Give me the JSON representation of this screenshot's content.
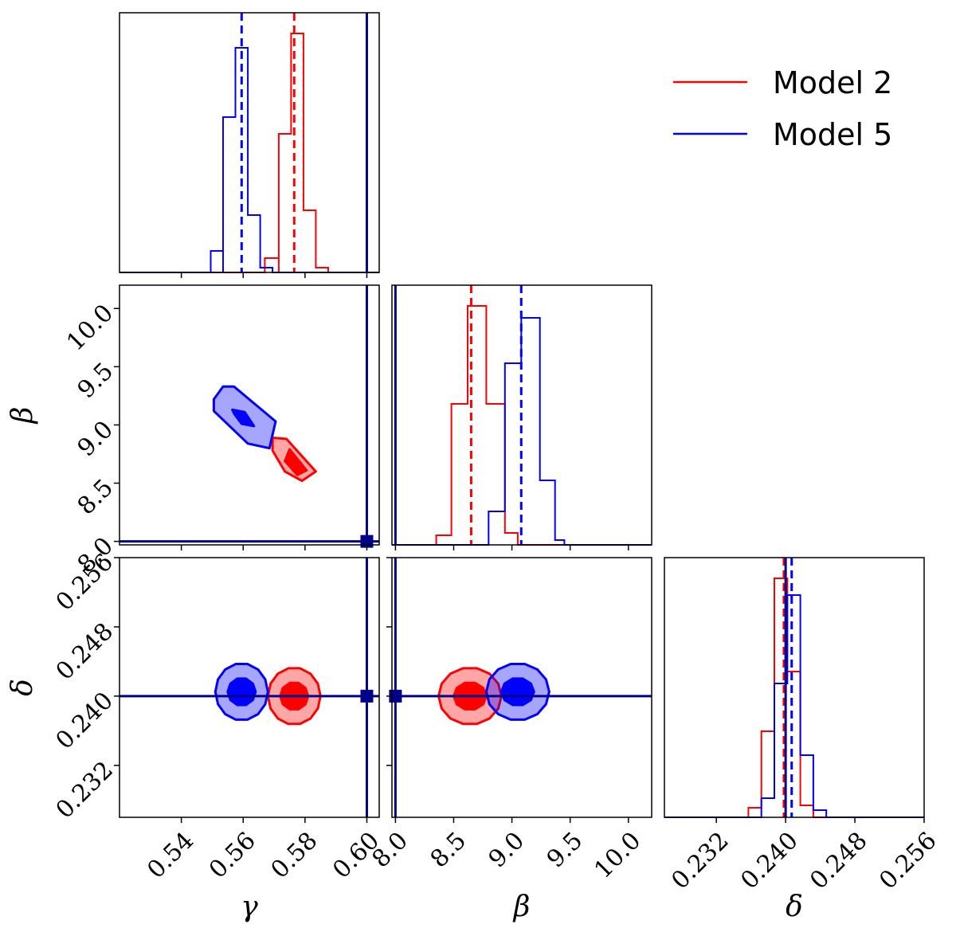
{
  "chart_data": {
    "type": "corner",
    "parameters": [
      {
        "key": "gamma",
        "label": "γ",
        "range": [
          0.52,
          0.604
        ],
        "ticks": [
          "0.54",
          "0.56",
          "0.58",
          "0.60"
        ],
        "tick_values": [
          0.54,
          0.56,
          0.58,
          0.6
        ]
      },
      {
        "key": "beta",
        "label": "β",
        "range": [
          7.97,
          10.2
        ],
        "ticks": [
          "8.0",
          "8.5",
          "9.0",
          "9.5",
          "10.0"
        ],
        "tick_values": [
          8.0,
          8.5,
          9.0,
          9.5,
          10.0
        ]
      },
      {
        "key": "delta",
        "label": "δ",
        "range": [
          0.226,
          0.256
        ],
        "ticks": [
          "0.232",
          "0.240",
          "0.248",
          "0.256"
        ],
        "tick_values": [
          0.232,
          0.24,
          0.248,
          0.256
        ]
      }
    ],
    "truth": {
      "gamma": 0.6,
      "beta": 8.0,
      "delta": 0.24
    },
    "colors": {
      "model2": "#ff0000",
      "model5": "#0000ff",
      "truth": "#00008b"
    },
    "legend": [
      {
        "name": "Model 2",
        "color": "#ff0000"
      },
      {
        "name": "Model 5",
        "color": "#0000ff"
      }
    ],
    "series": [
      {
        "name": "Model 2",
        "color": "#ff0000",
        "median": {
          "gamma": 0.5765,
          "beta": 8.65,
          "delta": 0.2398
        },
        "histograms": {
          "gamma": {
            "edges": [
              0.5715,
              0.5755,
              0.5795,
              0.5835,
              0.5875
            ],
            "counts": [
              0.58,
              1.0,
              0.26,
              0.02
            ],
            "floor_range": [
              0.52,
              0.604
            ],
            "pre": [
              [
                0.567,
                0.5715,
                0.06
              ]
            ]
          },
          "beta": {
            "edges": [
              8.35,
              8.48,
              8.62,
              8.78,
              8.94,
              9.05
            ],
            "counts": [
              0.04,
              0.59,
              1.0,
              0.59,
              0.05
            ],
            "floor_range": [
              7.97,
              10.2
            ]
          },
          "delta": {
            "edges": [
              0.2357,
              0.2372,
              0.2387,
              0.2402,
              0.2417,
              0.2432
            ],
            "counts": [
              0.04,
              0.36,
              1.0,
              0.61,
              0.05
            ],
            "floor_range": [
              0.226,
              0.256
            ]
          }
        },
        "contours": {
          "gamma_beta": {
            "center": [
              0.577,
              8.68
            ],
            "outer": [
              [
                0.5695,
                8.89
              ],
              [
                0.574,
                8.88
              ],
              [
                0.5835,
                8.6
              ],
              [
                0.579,
                8.52
              ],
              [
                0.5735,
                8.6
              ],
              [
                0.5695,
                8.78
              ]
            ],
            "inner": [
              [
                0.575,
                8.79
              ],
              [
                0.5805,
                8.61
              ],
              [
                0.5775,
                8.57
              ],
              [
                0.5735,
                8.69
              ]
            ]
          },
          "gamma_delta": {
            "center": [
              0.5765,
              0.24
            ],
            "r_outer": [
              0.0085,
              0.0033
            ],
            "r_inner": [
              0.0045,
              0.0016
            ]
          },
          "beta_delta": {
            "center": [
              8.64,
              0.24
            ],
            "r_outer": [
              0.27,
              0.0033
            ],
            "r_inner": [
              0.14,
              0.0016
            ]
          }
        }
      },
      {
        "name": "Model 5",
        "color": "#0000ff",
        "median": {
          "gamma": 0.5595,
          "beta": 9.08,
          "delta": 0.2407
        },
        "histograms": {
          "gamma": {
            "edges": [
              0.5535,
              0.5575,
              0.5615,
              0.5655,
              0.5695
            ],
            "counts": [
              0.65,
              0.94,
              0.24,
              0.02
            ],
            "floor_range": [
              0.52,
              0.604
            ],
            "pre": [
              [
                0.5495,
                0.5535,
                0.09
              ]
            ]
          },
          "beta": {
            "edges": [
              8.8,
              8.94,
              9.08,
              9.24,
              9.37,
              9.45
            ],
            "counts": [
              0.14,
              0.76,
              0.95,
              0.27,
              0.02
            ],
            "floor_range": [
              7.97,
              10.2
            ]
          },
          "delta": {
            "edges": [
              0.2372,
              0.2387,
              0.2402,
              0.2417,
              0.2432,
              0.2447
            ],
            "counts": [
              0.08,
              0.56,
              0.93,
              0.26,
              0.03
            ],
            "floor_range": [
              0.226,
              0.256
            ]
          }
        },
        "contours": {
          "gamma_beta": {
            "center": [
              0.5585,
              9.08
            ],
            "outer": [
              [
                0.5505,
                9.22
              ],
              [
                0.5535,
                9.33
              ],
              [
                0.557,
                9.33
              ],
              [
                0.5705,
                9.03
              ],
              [
                0.5685,
                8.8
              ],
              [
                0.5615,
                8.84
              ],
              [
                0.5505,
                9.12
              ]
            ],
            "inner": [
              [
                0.5565,
                9.13
              ],
              [
                0.5605,
                9.11
              ],
              [
                0.5635,
                8.99
              ],
              [
                0.5595,
                9.01
              ],
              [
                0.557,
                9.1
              ]
            ]
          },
          "gamma_delta": {
            "center": [
              0.5595,
              0.2405
            ],
            "r_outer": [
              0.0085,
              0.0033
            ],
            "r_inner": [
              0.0045,
              0.0016
            ]
          },
          "beta_delta": {
            "center": [
              9.05,
              0.2405
            ],
            "r_outer": [
              0.27,
              0.0033
            ],
            "r_inner": [
              0.14,
              0.0016
            ]
          }
        }
      }
    ]
  }
}
